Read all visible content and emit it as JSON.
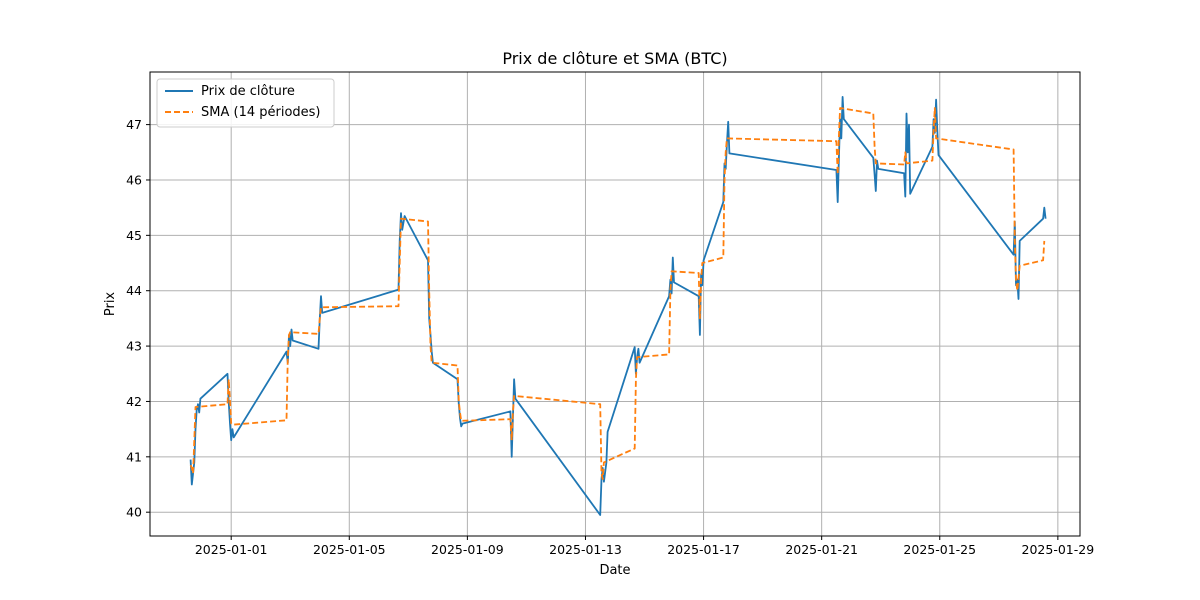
{
  "chart_data": {
    "type": "line",
    "title": "Prix de clôture et SMA (BTC)",
    "xlabel": "Date",
    "ylabel": "Prix",
    "xlim": [
      "2024-12-29T06:00",
      "2025-01-29T18:00"
    ],
    "ylim": [
      39.57,
      47.95
    ],
    "xticks": [
      "2025-01-01",
      "2025-01-05",
      "2025-01-09",
      "2025-01-13",
      "2025-01-17",
      "2025-01-21",
      "2025-01-25",
      "2025-01-29"
    ],
    "yticks": [
      40,
      41,
      42,
      43,
      44,
      45,
      46,
      47
    ],
    "grid": true,
    "legend_position": "top-left",
    "series": [
      {
        "name": "Prix de clôture",
        "color": "#1f77b4",
        "style": "solid",
        "points": [
          [
            "2024-12-30T15:00",
            40.95
          ],
          [
            "2024-12-30T16:00",
            40.5
          ],
          [
            "2024-12-30T18:00",
            40.9
          ],
          [
            "2024-12-30T19:00",
            41.5
          ],
          [
            "2024-12-30T20:00",
            41.85
          ],
          [
            "2024-12-30T21:00",
            41.95
          ],
          [
            "2024-12-30T22:00",
            41.8
          ],
          [
            "2024-12-30T23:00",
            42.05
          ],
          [
            "2024-12-31T21:00",
            42.5
          ],
          [
            "2024-12-31T22:00",
            42.0
          ],
          [
            "2024-12-31T23:00",
            41.6
          ],
          [
            "2025-01-01T00:00",
            41.3
          ],
          [
            "2025-01-01T01:00",
            41.5
          ],
          [
            "2025-01-01T02:00",
            41.35
          ],
          [
            "2025-01-02T21:00",
            42.9
          ],
          [
            "2025-01-02T22:00",
            42.7
          ],
          [
            "2025-01-02T23:00",
            43.2
          ],
          [
            "2025-01-03T00:00",
            43.0
          ],
          [
            "2025-01-03T01:00",
            43.3
          ],
          [
            "2025-01-03T02:00",
            43.1
          ],
          [
            "2025-01-03T23:00",
            42.95
          ],
          [
            "2025-01-04T00:00",
            43.5
          ],
          [
            "2025-01-04T01:00",
            43.9
          ],
          [
            "2025-01-04T02:00",
            43.6
          ],
          [
            "2025-01-06T16:00",
            44.02
          ],
          [
            "2025-01-06T17:00",
            44.9
          ],
          [
            "2025-01-06T18:00",
            45.4
          ],
          [
            "2025-01-06T19:00",
            45.1
          ],
          [
            "2025-01-06T21:00",
            45.35
          ],
          [
            "2025-01-07T16:00",
            44.55
          ],
          [
            "2025-01-07T17:00",
            43.5
          ],
          [
            "2025-01-07T18:00",
            43.2
          ],
          [
            "2025-01-07T19:00",
            42.9
          ],
          [
            "2025-01-07T20:00",
            42.7
          ],
          [
            "2025-01-08T16:00",
            42.4
          ],
          [
            "2025-01-08T17:00",
            41.95
          ],
          [
            "2025-01-08T18:00",
            41.7
          ],
          [
            "2025-01-08T19:00",
            41.55
          ],
          [
            "2025-01-08T20:00",
            41.6
          ],
          [
            "2025-01-10T11:00",
            41.82
          ],
          [
            "2025-01-10T12:00",
            41.0
          ],
          [
            "2025-01-10T13:00",
            41.7
          ],
          [
            "2025-01-10T14:00",
            42.4
          ],
          [
            "2025-01-10T15:00",
            42.05
          ],
          [
            "2025-01-13T12:00",
            39.95
          ],
          [
            "2025-01-13T13:00",
            40.6
          ],
          [
            "2025-01-13T14:00",
            40.8
          ],
          [
            "2025-01-13T15:00",
            40.55
          ],
          [
            "2025-01-13T17:00",
            40.9
          ],
          [
            "2025-01-13T18:00",
            41.45
          ],
          [
            "2025-01-14T16:00",
            42.98
          ],
          [
            "2025-01-14T17:00",
            42.5
          ],
          [
            "2025-01-14T18:00",
            42.8
          ],
          [
            "2025-01-14T19:00",
            42.95
          ],
          [
            "2025-01-14T20:00",
            42.7
          ],
          [
            "2025-01-15T20:00",
            43.9
          ],
          [
            "2025-01-15T21:00",
            44.2
          ],
          [
            "2025-01-15T22:00",
            43.95
          ],
          [
            "2025-01-15T23:00",
            44.6
          ],
          [
            "2025-01-16T00:00",
            44.15
          ],
          [
            "2025-01-16T20:00",
            43.9
          ],
          [
            "2025-01-16T21:00",
            43.2
          ],
          [
            "2025-01-16T22:00",
            44.3
          ],
          [
            "2025-01-16T23:00",
            44.1
          ],
          [
            "2025-01-17T00:00",
            44.55
          ],
          [
            "2025-01-17T16:00",
            45.6
          ],
          [
            "2025-01-17T17:00",
            46.3
          ],
          [
            "2025-01-17T18:00",
            46.2
          ],
          [
            "2025-01-17T19:00",
            46.65
          ],
          [
            "2025-01-17T20:00",
            47.05
          ],
          [
            "2025-01-17T21:00",
            46.48
          ],
          [
            "2025-01-21T12:00",
            46.18
          ],
          [
            "2025-01-21T13:00",
            45.6
          ],
          [
            "2025-01-21T14:00",
            46.4
          ],
          [
            "2025-01-21T15:00",
            47.1
          ],
          [
            "2025-01-21T16:00",
            46.75
          ],
          [
            "2025-01-21T17:00",
            47.5
          ],
          [
            "2025-01-21T18:00",
            47.1
          ],
          [
            "2025-01-22T18:00",
            46.4
          ],
          [
            "2025-01-22T19:00",
            46.1
          ],
          [
            "2025-01-22T20:00",
            45.8
          ],
          [
            "2025-01-22T21:00",
            46.35
          ],
          [
            "2025-01-22T22:00",
            46.2
          ],
          [
            "2025-01-23T19:00",
            46.12
          ],
          [
            "2025-01-23T20:00",
            45.7
          ],
          [
            "2025-01-23T21:00",
            47.2
          ],
          [
            "2025-01-23T22:00",
            46.5
          ],
          [
            "2025-01-23T23:00",
            47.0
          ],
          [
            "2025-01-24T00:00",
            45.75
          ],
          [
            "2025-01-24T18:00",
            46.6
          ],
          [
            "2025-01-24T19:00",
            47.1
          ],
          [
            "2025-01-24T20:00",
            46.85
          ],
          [
            "2025-01-24T21:00",
            47.45
          ],
          [
            "2025-01-24T22:00",
            46.9
          ],
          [
            "2025-01-24T23:00",
            46.45
          ],
          [
            "2025-01-27T12:00",
            44.65
          ],
          [
            "2025-01-27T13:00",
            45.25
          ],
          [
            "2025-01-27T14:00",
            44.1
          ],
          [
            "2025-01-27T15:00",
            44.2
          ],
          [
            "2025-01-27T16:00",
            43.85
          ],
          [
            "2025-01-27T17:00",
            44.9
          ],
          [
            "2025-01-28T12:00",
            45.3
          ],
          [
            "2025-01-28T13:00",
            45.5
          ],
          [
            "2025-01-28T14:00",
            45.3
          ]
        ]
      },
      {
        "name": "SMA (14 périodes)",
        "color": "#ff7f0e",
        "style": "dashed",
        "points": [
          [
            "2024-12-30T15:00",
            40.85
          ],
          [
            "2024-12-30T16:00",
            40.8
          ],
          [
            "2024-12-30T17:00",
            40.7
          ],
          [
            "2024-12-30T18:00",
            41.3
          ],
          [
            "2024-12-30T19:00",
            41.9
          ],
          [
            "2024-12-31T21:00",
            41.95
          ],
          [
            "2024-12-31T22:00",
            42.4
          ],
          [
            "2024-12-31T23:00",
            42.0
          ],
          [
            "2025-01-01T00:00",
            41.6
          ],
          [
            "2025-01-01T01:00",
            41.58
          ],
          [
            "2025-01-02T21:00",
            41.66
          ],
          [
            "2025-01-02T22:00",
            42.8
          ],
          [
            "2025-01-02T23:00",
            43.2
          ],
          [
            "2025-01-03T00:00",
            43.25
          ],
          [
            "2025-01-03T23:00",
            43.22
          ],
          [
            "2025-01-04T00:00",
            43.5
          ],
          [
            "2025-01-04T01:00",
            43.7
          ],
          [
            "2025-01-06T16:00",
            43.72
          ],
          [
            "2025-01-06T17:00",
            44.5
          ],
          [
            "2025-01-06T18:00",
            45.3
          ],
          [
            "2025-01-07T16:00",
            45.25
          ],
          [
            "2025-01-07T17:00",
            44.0
          ],
          [
            "2025-01-07T18:00",
            43.0
          ],
          [
            "2025-01-07T19:00",
            42.7
          ],
          [
            "2025-01-08T16:00",
            42.65
          ],
          [
            "2025-01-08T17:00",
            42.0
          ],
          [
            "2025-01-08T18:00",
            41.8
          ],
          [
            "2025-01-08T19:00",
            41.65
          ],
          [
            "2025-01-10T11:00",
            41.68
          ],
          [
            "2025-01-10T12:00",
            41.3
          ],
          [
            "2025-01-10T13:00",
            41.8
          ],
          [
            "2025-01-10T14:00",
            42.1
          ],
          [
            "2025-01-13T12:00",
            41.95
          ],
          [
            "2025-01-13T13:00",
            40.7
          ],
          [
            "2025-01-13T14:00",
            40.6
          ],
          [
            "2025-01-13T15:00",
            40.9
          ],
          [
            "2025-01-14T16:00",
            41.15
          ],
          [
            "2025-01-14T17:00",
            42.4
          ],
          [
            "2025-01-14T18:00",
            42.8
          ],
          [
            "2025-01-15T20:00",
            42.85
          ],
          [
            "2025-01-15T21:00",
            44.0
          ],
          [
            "2025-01-15T22:00",
            44.35
          ],
          [
            "2025-01-16T20:00",
            44.32
          ],
          [
            "2025-01-16T21:00",
            43.5
          ],
          [
            "2025-01-16T22:00",
            44.2
          ],
          [
            "2025-01-16T23:00",
            44.5
          ],
          [
            "2025-01-17T16:00",
            44.6
          ],
          [
            "2025-01-17T17:00",
            46.0
          ],
          [
            "2025-01-17T18:00",
            46.5
          ],
          [
            "2025-01-17T19:00",
            46.75
          ],
          [
            "2025-01-21T12:00",
            46.7
          ],
          [
            "2025-01-21T13:00",
            46.1
          ],
          [
            "2025-01-21T14:00",
            46.8
          ],
          [
            "2025-01-21T15:00",
            47.3
          ],
          [
            "2025-01-22T18:00",
            47.2
          ],
          [
            "2025-01-22T19:00",
            46.6
          ],
          [
            "2025-01-22T20:00",
            46.3
          ],
          [
            "2025-01-23T19:00",
            46.28
          ],
          [
            "2025-01-23T20:00",
            46.5
          ],
          [
            "2025-01-23T21:00",
            46.3
          ],
          [
            "2025-01-24T18:00",
            46.35
          ],
          [
            "2025-01-24T19:00",
            46.9
          ],
          [
            "2025-01-24T20:00",
            47.3
          ],
          [
            "2025-01-24T21:00",
            46.75
          ],
          [
            "2025-01-27T12:00",
            46.55
          ],
          [
            "2025-01-27T13:00",
            44.9
          ],
          [
            "2025-01-27T14:00",
            44.2
          ],
          [
            "2025-01-27T15:00",
            44.0
          ],
          [
            "2025-01-27T17:00",
            44.45
          ],
          [
            "2025-01-28T12:00",
            44.55
          ],
          [
            "2025-01-28T13:00",
            44.9
          ]
        ]
      }
    ]
  }
}
